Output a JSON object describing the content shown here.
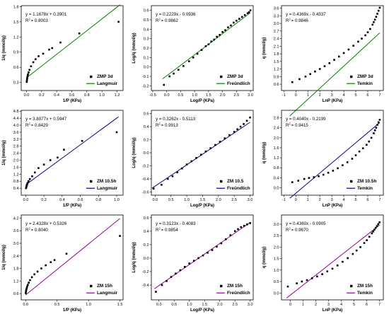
{
  "chart_data": [
    {
      "type": "scatter",
      "xlabel": "1/P (KPa)",
      "ylabel": "1/q (mmol/g)",
      "xlim": [
        -0.07,
        1.28
      ],
      "ylim": [
        0.14,
        1.82
      ],
      "xticks": [
        "0.0",
        "0.2",
        "0.4",
        "0.6",
        "0.8",
        "1.0",
        "1.2"
      ],
      "yticks": [
        "0.3",
        "0.6",
        "0.9",
        "1.2",
        "1.5",
        "1.8"
      ],
      "equation": "y = 1.1678x + 0.3901",
      "r2_label": "R",
      "r2_value": "= 0.8003",
      "legend_position": "bottom-right",
      "fit": {
        "name": "Langmuir",
        "color": "#008000",
        "slope": 1.1678,
        "intercept": 0.3901,
        "x_range": [
          0,
          1.24
        ]
      },
      "data": {
        "name": "ZMP 3d",
        "x": [
          0.003,
          0.005,
          0.008,
          0.011,
          0.015,
          0.02,
          0.028,
          0.04,
          0.06,
          0.09,
          0.12,
          0.16,
          0.22,
          0.3,
          0.34,
          0.45,
          0.7,
          1.22
        ],
        "y": [
          0.31,
          0.34,
          0.37,
          0.4,
          0.43,
          0.46,
          0.5,
          0.55,
          0.62,
          0.7,
          0.76,
          0.82,
          0.87,
          0.95,
          0.98,
          1.09,
          1.27,
          1.5
        ]
      }
    },
    {
      "type": "scatter",
      "xlabel": "Log/P (KPa)",
      "ylabel": "Log/q (mmol/g)",
      "xlim": [
        -0.55,
        3.1
      ],
      "ylim": [
        -0.25,
        0.65
      ],
      "xticks": [
        "-0.5",
        "0.0",
        "0.5",
        "1.0",
        "1.5",
        "2.0",
        "2.5",
        "3.0"
      ],
      "yticks": [
        "-0.2",
        "-0.1",
        "0.0",
        "0.1",
        "0.2",
        "0.3",
        "0.4",
        "0.5",
        "0.6"
      ],
      "equation": "y = 0.2229x - 0.0936",
      "r2_label": "R",
      "r2_value": "= 0.9862",
      "legend_position": "bottom-right",
      "fit": {
        "name": "Freündlich",
        "color": "#008000",
        "slope": 0.2229,
        "intercept": -0.0936,
        "x_range": [
          -0.15,
          3.0
        ]
      },
      "data": {
        "name": "ZMP 3d",
        "x": [
          -0.1,
          0.1,
          0.25,
          0.42,
          0.6,
          0.8,
          0.95,
          1.1,
          1.25,
          1.4,
          1.5,
          1.6,
          1.7,
          1.8,
          1.9,
          2.0,
          2.1,
          2.2,
          2.3,
          2.4,
          2.5,
          2.6,
          2.7,
          2.8,
          2.9,
          2.95,
          3.0
        ],
        "y": [
          -0.19,
          -0.1,
          -0.07,
          -0.03,
          0.01,
          0.06,
          0.1,
          0.14,
          0.18,
          0.22,
          0.24,
          0.27,
          0.29,
          0.32,
          0.34,
          0.37,
          0.39,
          0.42,
          0.44,
          0.47,
          0.49,
          0.51,
          0.53,
          0.55,
          0.57,
          0.58,
          0.6
        ]
      }
    },
    {
      "type": "scatter",
      "xlabel": "LnP (KPa)",
      "ylabel": "q (mmol/g)",
      "xlim": [
        -1.2,
        7.3
      ],
      "ylim": [
        0.35,
        3.7
      ],
      "xticks": [
        "-1",
        "0",
        "1",
        "2",
        "3",
        "4",
        "5",
        "6",
        "7"
      ],
      "yticks": [
        "0.6",
        "0.9",
        "1.2",
        "1.5",
        "1.8",
        "2.1",
        "2.4",
        "2.7",
        "3.0",
        "3.3",
        "3.6"
      ],
      "equation": "y = 0.4369x - 0.4337",
      "r2_label": "R",
      "r2_value": "= 0.9846",
      "legend_position": "bottom-right",
      "fit": {
        "name": "Temkin",
        "color": "#008000",
        "slope": 0.4369,
        "intercept": -0.4337,
        "x_range": [
          -0.5,
          7.0
        ]
      },
      "data": {
        "name": "ZMP 3d",
        "x": [
          -0.3,
          0.3,
          0.8,
          1.2,
          1.6,
          2.0,
          2.4,
          2.8,
          3.2,
          3.6,
          4.0,
          4.4,
          4.8,
          5.2,
          5.5,
          5.8,
          6.0,
          6.2,
          6.4,
          6.5,
          6.6,
          6.7,
          6.8,
          6.9,
          7.0
        ],
        "y": [
          0.68,
          0.8,
          0.9,
          1.0,
          1.1,
          1.2,
          1.31,
          1.43,
          1.56,
          1.69,
          1.83,
          1.97,
          2.12,
          2.28,
          2.4,
          2.53,
          2.65,
          2.78,
          2.95,
          3.05,
          3.15,
          3.26,
          3.38,
          3.5,
          3.62
        ]
      }
    },
    {
      "type": "scatter",
      "xlabel": "1/P (KPa)",
      "ylabel": "1/q (mmol/g)",
      "xlim": [
        -0.05,
        1.07
      ],
      "ylim": [
        0.0,
        4.85
      ],
      "xticks": [
        "0.0",
        "0.2",
        "0.4",
        "0.6",
        "0.8",
        "1.0"
      ],
      "yticks": [
        "0.4",
        "0.8",
        "1.2",
        "1.6",
        "2.0",
        "2.4",
        "2.8",
        "3.2",
        "3.6",
        "4.0",
        "4.4",
        "4.8"
      ],
      "equation": "y = 3.8077x + 0.5947",
      "r2_label": "R",
      "r2_value": "= 0.8429",
      "legend_position": "bottom-right",
      "fit": {
        "name": "Langmuir",
        "color": "#00008B",
        "slope": 3.8077,
        "intercept": 0.5947,
        "x_range": [
          0,
          1.02
        ]
      },
      "data": {
        "name": "ZM 10.5h",
        "x": [
          0.003,
          0.005,
          0.008,
          0.011,
          0.015,
          0.02,
          0.03,
          0.045,
          0.07,
          0.1,
          0.14,
          0.2,
          0.27,
          0.35,
          0.42,
          0.62,
          1.0
        ],
        "y": [
          0.4,
          0.45,
          0.5,
          0.56,
          0.62,
          0.7,
          0.8,
          0.92,
          1.08,
          1.3,
          1.55,
          1.75,
          2.0,
          2.15,
          2.6,
          3.1,
          3.6
        ]
      }
    },
    {
      "type": "scatter",
      "xlabel": "Log/P (KPa)",
      "ylabel": "Log/q (mmol/g)",
      "xlim": [
        -0.12,
        3.1
      ],
      "ylim": [
        -0.65,
        0.65
      ],
      "xticks": [
        "0.0",
        "0.5",
        "1.0",
        "1.5",
        "2.0",
        "2.5",
        "3.0"
      ],
      "yticks": [
        "-0.6",
        "-0.4",
        "-0.2",
        "0.0",
        "0.2",
        "0.4",
        "0.6"
      ],
      "equation": "y = 0.3262x - 0.5113",
      "r2_label": "R",
      "r2_value": "= 0.9913",
      "legend_position": "bottom-right",
      "fit": {
        "name": "Freündlich",
        "color": "#00008B",
        "slope": 0.3262,
        "intercept": -0.5113,
        "x_range": [
          -0.1,
          3.0
        ]
      },
      "data": {
        "name": "ZM 10.5",
        "x": [
          -0.05,
          0.2,
          0.4,
          0.55,
          0.7,
          0.85,
          1.0,
          1.15,
          1.3,
          1.45,
          1.6,
          1.75,
          1.9,
          2.05,
          2.2,
          2.35,
          2.5,
          2.6,
          2.7,
          2.8,
          2.9,
          3.0
        ],
        "y": [
          -0.55,
          -0.49,
          -0.4,
          -0.36,
          -0.3,
          -0.24,
          -0.18,
          -0.13,
          -0.08,
          -0.03,
          0.02,
          0.07,
          0.12,
          0.17,
          0.22,
          0.27,
          0.32,
          0.36,
          0.4,
          0.44,
          0.49,
          0.54
        ]
      }
    },
    {
      "type": "scatter",
      "xlabel": "LnP (KPa)",
      "ylabel": "q (mmol/g)",
      "xlim": [
        -1.2,
        7.3
      ],
      "ylim": [
        -0.3,
        3.1
      ],
      "xticks": [
        "-1",
        "0",
        "1",
        "2",
        "3",
        "4",
        "5",
        "6",
        "7"
      ],
      "yticks": [
        "0.0",
        "0.4",
        "0.8",
        "1.2",
        "1.6",
        "2.0",
        "2.4",
        "2.8"
      ],
      "equation": "y = 0.4040x - 0.2199",
      "r2_label": "R",
      "r2_value": "= 0.9415",
      "legend_position": "bottom-right",
      "fit": {
        "name": "Temkin",
        "color": "#00008B",
        "slope": 0.404,
        "intercept": -0.2199,
        "x_range": [
          -0.5,
          7.0
        ]
      },
      "data": {
        "name": "ZM 10.5h",
        "x": [
          -0.3,
          0.2,
          0.7,
          1.1,
          1.5,
          1.9,
          2.3,
          2.7,
          3.1,
          3.5,
          3.9,
          4.3,
          4.7,
          5.0,
          5.3,
          5.6,
          5.9,
          6.1,
          6.3,
          6.5,
          6.6,
          6.7,
          6.8,
          6.9,
          7.0
        ],
        "y": [
          0.22,
          0.28,
          0.35,
          0.39,
          0.42,
          0.46,
          0.52,
          0.6,
          0.68,
          0.78,
          0.9,
          1.02,
          1.16,
          1.3,
          1.45,
          1.58,
          1.72,
          1.85,
          2.0,
          2.18,
          2.3,
          2.4,
          2.52,
          2.62,
          2.72
        ]
      }
    },
    {
      "type": "scatter",
      "xlabel": "1/P (KPa)",
      "ylabel": "1/q (mmol/g)",
      "xlim": [
        -0.07,
        1.55
      ],
      "ylim": [
        0.3,
        4.35
      ],
      "xticks": [
        "0.0",
        "0.5",
        "1.0",
        "1.5"
      ],
      "yticks": [
        "0.6",
        "1.2",
        "1.8",
        "2.4",
        "3.0",
        "3.6",
        "4.2"
      ],
      "equation": "y = 2.4328x + 0.5326",
      "r2_label": "R",
      "r2_value": "= 0.8040",
      "legend_position": "bottom-right",
      "fit": {
        "name": "Langmuir",
        "color": "#990099",
        "slope": 2.4328,
        "intercept": 0.5326,
        "x_range": [
          0,
          1.5
        ]
      },
      "data": {
        "name": "ZM 15h",
        "x": [
          0.003,
          0.005,
          0.008,
          0.012,
          0.018,
          0.025,
          0.035,
          0.05,
          0.07,
          0.1,
          0.14,
          0.19,
          0.25,
          0.32,
          0.4,
          0.46,
          0.65,
          1.5
        ],
        "y": [
          0.62,
          0.68,
          0.74,
          0.8,
          0.86,
          0.94,
          1.02,
          1.12,
          1.24,
          1.38,
          1.52,
          1.65,
          1.8,
          1.95,
          2.1,
          2.2,
          2.5,
          3.35
        ]
      }
    },
    {
      "type": "scatter",
      "xlabel": "Log/P (KPa)",
      "ylabel": "Log/q (mmol/g)",
      "xlim": [
        -0.25,
        3.1
      ],
      "ylim": [
        -0.62,
        0.64
      ],
      "xticks": [
        "0.0",
        "0.5",
        "1.0",
        "1.5",
        "2.0",
        "2.5",
        "3.0"
      ],
      "yticks": [
        "-0.4",
        "-0.2",
        "0.0",
        "0.2",
        "0.4",
        "0.6"
      ],
      "equation": "y = 0.3123x - 0.4083",
      "r2_label": "R",
      "r2_value": "= 0.9854",
      "legend_position": "bottom-right",
      "fit": {
        "name": "Freündlich",
        "color": "#990099",
        "slope": 0.3123,
        "intercept": -0.4083,
        "x_range": [
          -0.15,
          3.0
        ]
      },
      "data": {
        "name": "ZM 15h",
        "x": [
          -0.1,
          0.1,
          0.25,
          0.4,
          0.55,
          0.7,
          0.85,
          1.0,
          1.15,
          1.3,
          1.45,
          1.6,
          1.75,
          1.9,
          2.05,
          2.2,
          2.35,
          2.5,
          2.6,
          2.7,
          2.8,
          2.9,
          3.0
        ],
        "y": [
          -0.5,
          -0.4,
          -0.34,
          -0.28,
          -0.23,
          -0.18,
          -0.13,
          -0.08,
          -0.04,
          0.0,
          0.04,
          0.08,
          0.12,
          0.17,
          0.22,
          0.28,
          0.34,
          0.4,
          0.43,
          0.46,
          0.48,
          0.5,
          0.52
        ]
      }
    },
    {
      "type": "scatter",
      "xlabel": "LnP (KPa)",
      "ylabel": "q (mmol/g)",
      "xlim": [
        -0.7,
        7.3
      ],
      "ylim": [
        -0.3,
        3.4
      ],
      "xticks": [
        "0",
        "1",
        "2",
        "3",
        "4",
        "5",
        "6",
        "7"
      ],
      "yticks": [
        "0.0",
        "0.5",
        "1.0",
        "1.5",
        "2.0",
        "2.5",
        "3.0"
      ],
      "equation": "y = 0.4360x - 0.0905",
      "r2_label": "R",
      "r2_value": "= 0.9670",
      "legend_position": "bottom-right",
      "fit": {
        "name": "Temkin",
        "color": "#990099",
        "slope": 0.436,
        "intercept": -0.0905,
        "x_range": [
          -0.3,
          7.0
        ]
      },
      "data": {
        "name": "ZM 15h",
        "x": [
          -0.2,
          0.5,
          0.9,
          1.3,
          1.7,
          2.1,
          2.5,
          2.9,
          3.3,
          3.7,
          4.1,
          4.5,
          4.9,
          5.2,
          5.5,
          5.8,
          6.0,
          6.2,
          6.4,
          6.5,
          6.6,
          6.7,
          6.8,
          6.9,
          7.0
        ],
        "y": [
          0.28,
          0.42,
          0.5,
          0.56,
          0.64,
          0.72,
          0.82,
          0.94,
          1.06,
          1.2,
          1.36,
          1.52,
          1.7,
          1.85,
          2.0,
          2.18,
          2.3,
          2.45,
          2.6,
          2.68,
          2.76,
          2.84,
          2.92,
          3.0,
          3.08
        ]
      }
    }
  ]
}
